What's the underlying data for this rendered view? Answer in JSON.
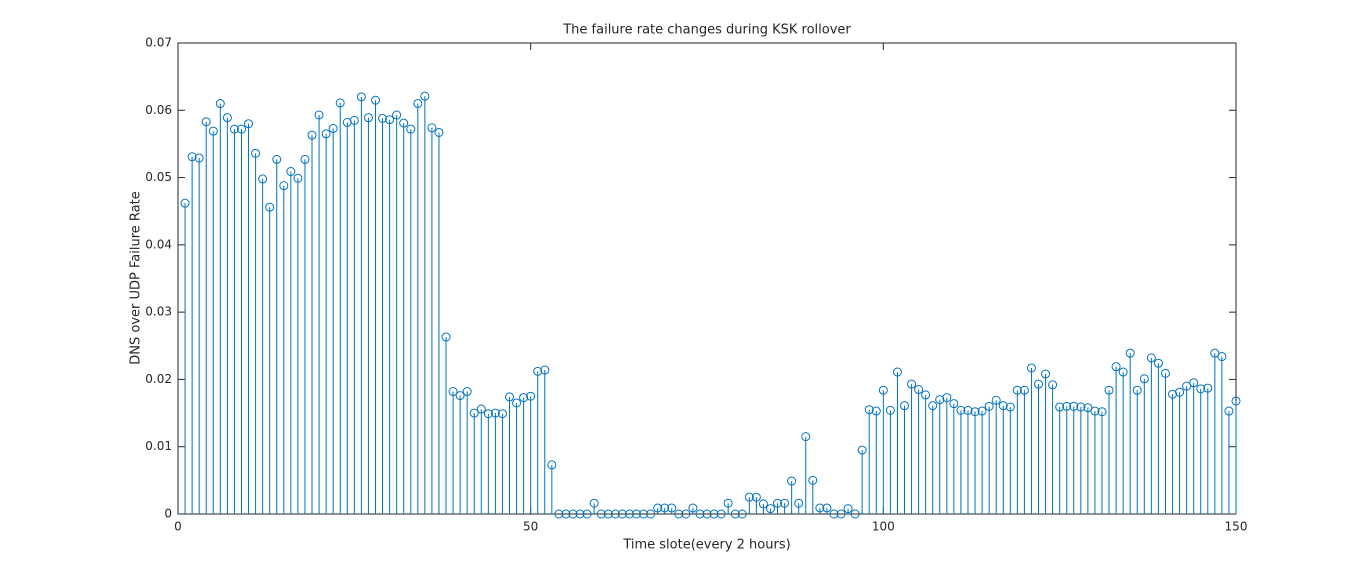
{
  "chart_data": {
    "type": "stem",
    "title": "The failure rate changes during KSK rollover",
    "xlabel": "Time slote(every 2 hours)",
    "ylabel": "DNS over UDP Failure Rate",
    "x": [
      1,
      2,
      3,
      4,
      5,
      6,
      7,
      8,
      9,
      10,
      11,
      12,
      13,
      14,
      15,
      16,
      17,
      18,
      19,
      20,
      21,
      22,
      23,
      24,
      25,
      26,
      27,
      28,
      29,
      30,
      31,
      32,
      33,
      34,
      35,
      36,
      37,
      38,
      39,
      40,
      41,
      42,
      43,
      44,
      45,
      46,
      47,
      48,
      49,
      50,
      51,
      52,
      53,
      54,
      55,
      56,
      57,
      58,
      59,
      60,
      61,
      62,
      63,
      64,
      65,
      66,
      67,
      68,
      69,
      70,
      71,
      72,
      73,
      74,
      75,
      76,
      77,
      78,
      79,
      80,
      81,
      82,
      83,
      84,
      85,
      86,
      87,
      88,
      89,
      90,
      91,
      92,
      93,
      94,
      95,
      96,
      97,
      98,
      99,
      100,
      101,
      102,
      103,
      104,
      105,
      106,
      107,
      108,
      109,
      110,
      111,
      112,
      113,
      114,
      115,
      116,
      117,
      118,
      119,
      120,
      121,
      122,
      123,
      124,
      125,
      126,
      127,
      128,
      129,
      130,
      131,
      132,
      133,
      134,
      135,
      136,
      137,
      138,
      139,
      140,
      141,
      142,
      143,
      144,
      145,
      146,
      147,
      148,
      149,
      150
    ],
    "series": [
      {
        "name": "failure rate",
        "color": "#0072bd",
        "values": [
          0.0462,
          0.0531,
          0.0529,
          0.0583,
          0.0569,
          0.061,
          0.0589,
          0.0572,
          0.0572,
          0.058,
          0.0536,
          0.0498,
          0.0456,
          0.0527,
          0.0488,
          0.0509,
          0.0499,
          0.0527,
          0.0563,
          0.0593,
          0.0565,
          0.0573,
          0.0611,
          0.0582,
          0.0585,
          0.062,
          0.0589,
          0.0615,
          0.0588,
          0.0586,
          0.0593,
          0.0581,
          0.0572,
          0.061,
          0.0621,
          0.0574,
          0.0567,
          0.0263,
          0.0182,
          0.0176,
          0.0182,
          0.015,
          0.0156,
          0.0149,
          0.015,
          0.0149,
          0.0174,
          0.0165,
          0.0173,
          0.0175,
          0.0212,
          0.0214,
          0.0073,
          0,
          0,
          0,
          0,
          0,
          0.0016,
          0,
          0,
          0,
          0,
          0,
          0,
          0,
          0,
          0.0009,
          0.0009,
          0.0009,
          0,
          0,
          0.0009,
          0,
          0,
          0,
          0,
          0.0016,
          0,
          0,
          0.0025,
          0.0025,
          0.0015,
          0.0008,
          0.0016,
          0.0016,
          0.0049,
          0.0016,
          0.0115,
          0.005,
          0.0009,
          0.0009,
          0,
          0,
          0.0008,
          0,
          0.0095,
          0.0155,
          0.0153,
          0.0184,
          0.0154,
          0.0211,
          0.0161,
          0.0193,
          0.0185,
          0.0177,
          0.0161,
          0.017,
          0.0173,
          0.0164,
          0.0154,
          0.0154,
          0.0152,
          0.0153,
          0.016,
          0.0169,
          0.0161,
          0.0159,
          0.0184,
          0.0184,
          0.0217,
          0.0193,
          0.0208,
          0.0192,
          0.0159,
          0.016,
          0.016,
          0.0159,
          0.0158,
          0.0153,
          0.0152,
          0.0184,
          0.0219,
          0.0211,
          0.0239,
          0.0184,
          0.0201,
          0.0232,
          0.0224,
          0.0209,
          0.0178,
          0.0181,
          0.019,
          0.0195,
          0.0186,
          0.0187,
          0.0239,
          0.0234,
          0.0153,
          0.0168
        ]
      }
    ],
    "xlim": [
      0,
      150
    ],
    "xticks": [
      0,
      50,
      100,
      150
    ],
    "ylim": [
      0,
      0.07
    ],
    "yticks": [
      0,
      0.01,
      0.02,
      0.03,
      0.04,
      0.05,
      0.06,
      0.07
    ]
  }
}
